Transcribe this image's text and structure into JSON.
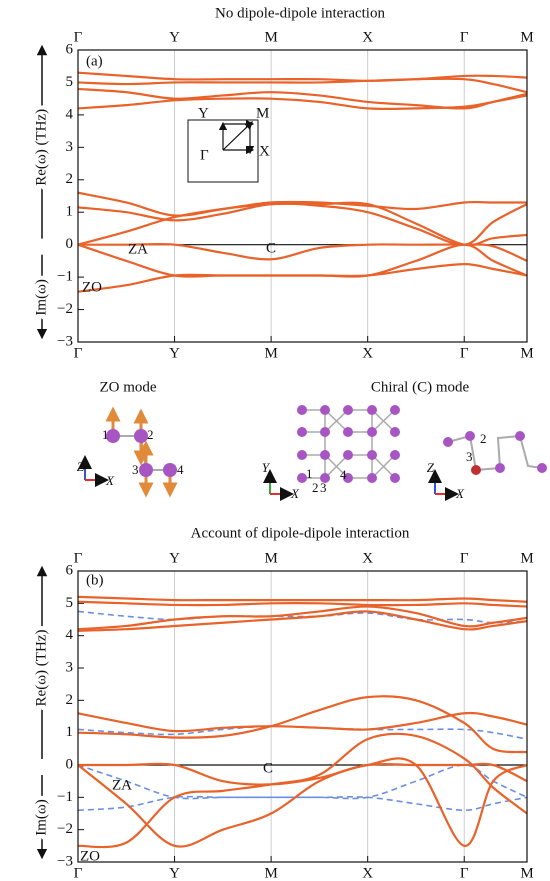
{
  "chart_data": [
    {
      "type": "line",
      "title": "No dipole-dipole interaction",
      "ylabel_re": "Re(ω) (THz)",
      "ylabel_im": "Im(ω)",
      "annotations": [
        "(a)",
        "ZA",
        "C",
        "ZO"
      ],
      "inset_labels": [
        "Y",
        "M",
        "Γ",
        "X"
      ],
      "grid": true,
      "x": [
        0,
        0.5,
        1,
        1.5,
        2,
        2.5,
        3,
        3.5,
        4,
        4.3,
        4.65
      ],
      "xlim": [
        0,
        4.65
      ],
      "xticks": [
        {
          "value": 0,
          "label": "Γ"
        },
        {
          "value": 1,
          "label": "Y"
        },
        {
          "value": 2,
          "label": "M"
        },
        {
          "value": 3,
          "label": "X"
        },
        {
          "value": 4,
          "label": "Γ"
        },
        {
          "value": 4.65,
          "label": "M"
        }
      ],
      "ylim": [
        -3,
        6
      ],
      "yticks": [
        6,
        5,
        4,
        3,
        2,
        1,
        0,
        {
          "value": -1,
          "label": "−1"
        },
        {
          "value": -2,
          "label": "−2"
        },
        {
          "value": -3,
          "label": "−3"
        }
      ],
      "series": [
        {
          "color": "#e8622a",
          "values": [
            5.3,
            5.2,
            5.1,
            5.1,
            5.1,
            5.1,
            5.05,
            5.1,
            5.2,
            5.2,
            5.15
          ]
        },
        {
          "color": "#e8622a",
          "values": [
            5.0,
            4.95,
            5.0,
            5.0,
            5.0,
            5.0,
            5.05,
            5.1,
            5.1,
            4.95,
            4.7
          ]
        },
        {
          "color": "#e8622a",
          "values": [
            4.8,
            4.7,
            4.5,
            4.6,
            4.7,
            4.6,
            4.4,
            4.3,
            4.2,
            4.4,
            4.65
          ]
        },
        {
          "color": "#e8622a",
          "values": [
            4.2,
            4.3,
            4.45,
            4.5,
            4.5,
            4.4,
            4.2,
            4.2,
            4.25,
            4.4,
            4.6
          ]
        },
        {
          "color": "#e8622a",
          "values": [
            1.6,
            1.3,
            0.9,
            1.1,
            1.3,
            1.3,
            1.2,
            1.1,
            1.3,
            1.3,
            1.3
          ]
        },
        {
          "color": "#e8622a",
          "values": [
            1.15,
            1.0,
            0.75,
            0.95,
            1.25,
            1.2,
            1.0,
            0.5,
            0.0,
            0.7,
            1.25
          ]
        },
        {
          "color": "#e8622a",
          "values": [
            0,
            0.4,
            0.85,
            1.1,
            1.25,
            1.25,
            1.25,
            0.65,
            0.0,
            0.2,
            0.3
          ]
        },
        {
          "color": "#e8622a",
          "values": [
            0,
            0,
            0,
            -0.25,
            -0.45,
            -0.1,
            0,
            0,
            0,
            -0.05,
            -0.5
          ]
        },
        {
          "color": "#e8622a",
          "values": [
            0,
            -0.5,
            -0.95,
            -0.95,
            -0.95,
            -0.95,
            -0.95,
            -0.5,
            0,
            -0.5,
            -0.95
          ]
        },
        {
          "color": "#e8622a",
          "values": [
            -1.45,
            -1.25,
            -0.95,
            -0.95,
            -0.95,
            -0.95,
            -0.95,
            -0.75,
            -0.6,
            -0.75,
            -0.95
          ]
        }
      ]
    },
    {
      "type": "line",
      "title": "Account of dipole-dipole interaction",
      "ylabel_re": "Re(ω) (THz)",
      "ylabel_im": "Im(ω)",
      "annotations": [
        "(b)",
        "ZA",
        "C",
        "ZO"
      ],
      "grid": true,
      "x": [
        0,
        0.5,
        1,
        1.5,
        2,
        2.5,
        3,
        3.5,
        4,
        4.3,
        4.65
      ],
      "xlim": [
        0,
        4.65
      ],
      "xticks": [
        {
          "value": 0,
          "label": "Γ"
        },
        {
          "value": 1,
          "label": "Y"
        },
        {
          "value": 2,
          "label": "M"
        },
        {
          "value": 3,
          "label": "X"
        },
        {
          "value": 4,
          "label": "Γ"
        },
        {
          "value": 4.65,
          "label": "M"
        }
      ],
      "ylim": [
        -3,
        6
      ],
      "yticks": [
        6,
        5,
        4,
        3,
        2,
        1,
        0,
        {
          "value": -1,
          "label": "−1"
        },
        {
          "value": -2,
          "label": "−2"
        },
        {
          "value": -3,
          "label": "−3"
        }
      ],
      "series": [
        {
          "color": "#6a8fe0",
          "dash": true,
          "values": [
            4.75,
            4.6,
            4.5,
            4.6,
            4.6,
            4.6,
            4.7,
            4.5,
            4.5,
            4.4,
            4.45
          ]
        },
        {
          "color": "#6a8fe0",
          "dash": true,
          "values": [
            1.1,
            1.0,
            0.95,
            1.1,
            1.2,
            1.15,
            1.1,
            1.1,
            1.1,
            1.0,
            0.8
          ]
        },
        {
          "color": "#6a8fe0",
          "dash": true,
          "values": [
            0,
            -0.5,
            -1.0,
            -1.0,
            -1.0,
            -1.0,
            -1.0,
            -0.5,
            0,
            -0.5,
            -1.0
          ]
        },
        {
          "color": "#6a8fe0",
          "dash": true,
          "values": [
            -1.4,
            -1.3,
            -1.0,
            -1.0,
            -1.0,
            -1.0,
            -1.0,
            -1.2,
            -1.4,
            -1.2,
            -1.0
          ]
        },
        {
          "color": "#e8622a",
          "values": [
            5.2,
            5.15,
            5.1,
            5.1,
            5.1,
            5.1,
            5.1,
            5.1,
            5.15,
            5.1,
            5.05
          ]
        },
        {
          "color": "#e8622a",
          "values": [
            5.05,
            5.0,
            4.95,
            4.95,
            5.0,
            5.0,
            4.95,
            4.95,
            5.0,
            4.95,
            4.9
          ]
        },
        {
          "color": "#e8622a",
          "values": [
            4.2,
            4.3,
            4.5,
            4.6,
            4.6,
            4.75,
            4.9,
            4.7,
            4.3,
            4.4,
            4.55
          ]
        },
        {
          "color": "#e8622a",
          "values": [
            4.15,
            4.2,
            4.3,
            4.4,
            4.5,
            4.6,
            4.75,
            4.5,
            4.2,
            4.3,
            4.45
          ]
        },
        {
          "color": "#e8622a",
          "values": [
            1.6,
            1.3,
            1.05,
            1.15,
            1.2,
            1.15,
            1.1,
            1.3,
            1.6,
            1.5,
            1.25
          ]
        },
        {
          "color": "#e8622a",
          "values": [
            1.0,
            0.95,
            0.85,
            0.9,
            1.2,
            1.7,
            2.1,
            2.0,
            1.3,
            0.5,
            0.4
          ]
        },
        {
          "color": "#e8622a",
          "values": [
            0,
            -1.2,
            -2.5,
            -2.0,
            -1.5,
            -0.5,
            0,
            0,
            -2.5,
            -0.5,
            0
          ]
        },
        {
          "color": "#e8622a",
          "values": [
            -2.5,
            -2.4,
            -1.0,
            -0.8,
            -0.6,
            -0.3,
            0.8,
            0.9,
            0.2,
            -0.7,
            -1.5
          ]
        },
        {
          "color": "#e8622a",
          "values": [
            0,
            0,
            0,
            -0.5,
            -0.6,
            -0.4,
            0,
            0,
            0,
            0,
            -0.5
          ]
        }
      ]
    }
  ],
  "modes": {
    "zo": {
      "title": "ZO mode",
      "atoms": [
        "1",
        "2",
        "3",
        "4"
      ],
      "axes": [
        "Z",
        "X"
      ]
    },
    "chiral": {
      "title": "Chiral (C) mode",
      "atoms": [
        "1",
        "2",
        "3",
        "4"
      ],
      "axes": [
        "Y",
        "X"
      ],
      "atoms_right": [
        "2",
        "3"
      ],
      "axes_right": [
        "Z",
        "X"
      ]
    }
  }
}
